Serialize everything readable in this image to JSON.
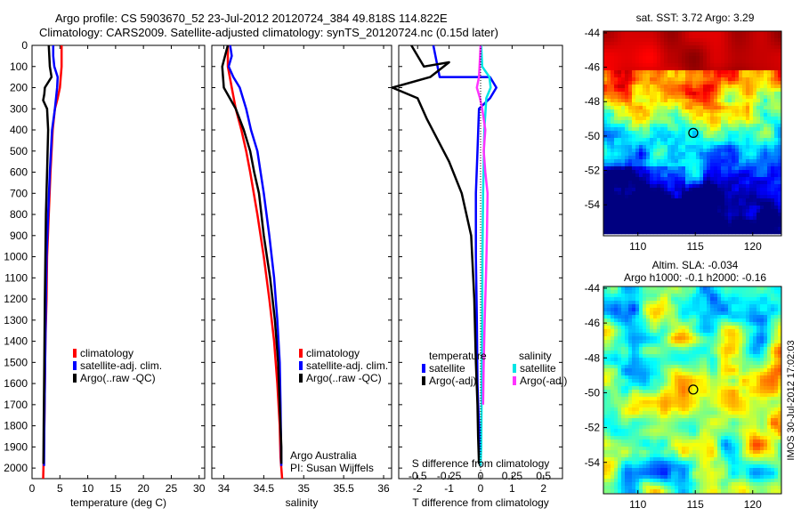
{
  "header": {
    "line1": "Argo profile: CS 5903670_52 23-Jul-2012 20120724_384 49.818S 114.822E",
    "line2": "Climatology: CARS2009. Satellite-adjusted climatology: synTS_20120724.nc (0.15d later)"
  },
  "colors": {
    "climatology": "#ff0000",
    "satellite": "#0000ff",
    "argo": "#000000",
    "sal_satellite": "#00e5e5",
    "sal_argo": "#ff33ff"
  },
  "chart_data": [
    {
      "id": "temperature",
      "type": "line",
      "xlabel": "temperature (deg C)",
      "ylabel": "",
      "xlim": [
        0,
        31
      ],
      "ylim": [
        2050,
        0
      ],
      "x_ticks": [
        0,
        5,
        10,
        15,
        20,
        25,
        30
      ],
      "y_ticks": [
        0,
        100,
        200,
        300,
        400,
        500,
        600,
        700,
        800,
        900,
        1000,
        1100,
        1200,
        1300,
        1400,
        1500,
        1600,
        1700,
        1800,
        1900,
        2000
      ],
      "legend": {
        "placement": "lower-middle",
        "entries": [
          "climatology",
          "satellite-adj. clim.",
          "Argo(..raw -QC)"
        ]
      },
      "series": [
        {
          "name": "climatology",
          "color": "#ff0000",
          "x": [
            5.3,
            5.3,
            5.0,
            4.6,
            4.1,
            3.7,
            3.3,
            3.0,
            2.7,
            2.6,
            2.4,
            2.3,
            2.2,
            2.1,
            2.0
          ],
          "y": [
            0,
            100,
            200,
            250,
            300,
            400,
            600,
            800,
            1000,
            1200,
            1400,
            1600,
            1800,
            1950,
            2050
          ]
        },
        {
          "name": "satellite-adj. clim.",
          "color": "#0000ff",
          "x": [
            3.8,
            3.8,
            4.0,
            4.6,
            4.5,
            4.1,
            3.6,
            3.2,
            2.9,
            2.6,
            2.5,
            2.4,
            2.3,
            2.2,
            2.15
          ],
          "y": [
            0,
            50,
            100,
            150,
            200,
            300,
            400,
            600,
            800,
            1000,
            1200,
            1400,
            1600,
            1800,
            1990
          ]
        },
        {
          "name": "Argo(..raw -QC)",
          "color": "#000000",
          "x": [
            3.0,
            3.2,
            3.5,
            2.3,
            2.2,
            2.0,
            2.7,
            2.9,
            2.7,
            2.5,
            2.4,
            2.3,
            2.2,
            2.1,
            2.05
          ],
          "y": [
            0,
            100,
            150,
            200,
            230,
            260,
            300,
            400,
            600,
            800,
            1000,
            1200,
            1500,
            1800,
            1980
          ]
        }
      ]
    },
    {
      "id": "salinity",
      "type": "line",
      "xlabel": "salinity",
      "ylabel": "",
      "xlim": [
        33.85,
        36.1
      ],
      "ylim": [
        2050,
        0
      ],
      "x_ticks": [
        34,
        34.5,
        35,
        35.5,
        36
      ],
      "legend": {
        "placement": "lower-right",
        "entries": [
          "climatology",
          "satellite-adj. clim.",
          "Argo(..raw -QC)"
        ]
      },
      "annotation": [
        "Argo Australia",
        "PI: Susan Wijffels"
      ],
      "series": [
        {
          "name": "climatology",
          "color": "#ff0000",
          "x": [
            34.05,
            34.05,
            34.1,
            34.15,
            34.22,
            34.28,
            34.33,
            34.42,
            34.5,
            34.57,
            34.63,
            34.67,
            34.7,
            34.71,
            34.72,
            34.73
          ],
          "y": [
            0,
            100,
            200,
            300,
            400,
            500,
            600,
            800,
            1000,
            1200,
            1400,
            1600,
            1800,
            1950,
            2000,
            2050
          ]
        },
        {
          "name": "satellite-adj. clim.",
          "color": "#0000ff",
          "x": [
            34.08,
            34.1,
            34.06,
            34.12,
            34.2,
            34.28,
            34.34,
            34.42,
            34.5,
            34.57,
            34.63,
            34.67,
            34.7,
            34.71,
            34.72
          ],
          "y": [
            0,
            50,
            100,
            150,
            200,
            300,
            400,
            500,
            700,
            900,
            1100,
            1300,
            1500,
            1700,
            1990
          ]
        },
        {
          "name": "Argo(..raw -QC)",
          "color": "#000000",
          "x": [
            34.05,
            33.98,
            34.0,
            34.15,
            34.25,
            34.33,
            34.38,
            34.44,
            34.5,
            34.58,
            34.64,
            34.68,
            34.7,
            34.72,
            34.72
          ],
          "y": [
            0,
            100,
            200,
            300,
            400,
            500,
            600,
            700,
            900,
            1100,
            1300,
            1500,
            1700,
            1900,
            1980
          ]
        }
      ]
    },
    {
      "id": "difference",
      "type": "line",
      "xlabel": "T difference from climatology",
      "ylabel": "",
      "xlim": [
        -2.6,
        2.6
      ],
      "ylim": [
        2050,
        0
      ],
      "x_ticks": [
        -2,
        -1,
        0,
        1,
        2
      ],
      "top_axis_label": "S difference from climatology",
      "top_ticks": [
        "-0.5",
        "-0.25",
        "0",
        "0.25",
        "0.5"
      ],
      "top_tick_values": [
        -0.5,
        -0.25,
        0,
        0.25,
        0.5
      ],
      "legend": {
        "placement": "lower-middle",
        "temperature_title": "temperature",
        "salinity_title": "salinity",
        "temperature_entries": [
          "satellite",
          "Argo(-adj)"
        ],
        "salinity_entries": [
          "satellite",
          "Argo(-adj)"
        ]
      },
      "series": [
        {
          "name": "temperature satellite",
          "color": "#0000ff",
          "x": [
            -1.5,
            -1.3,
            0.3,
            0.5,
            0.3,
            -0.05,
            -0.1,
            -0.15,
            -0.15,
            -0.12,
            -0.1,
            -0.05,
            0.0
          ],
          "y": [
            0,
            150,
            150,
            200,
            250,
            300,
            500,
            700,
            1000,
            1300,
            1600,
            1800,
            1990
          ]
        },
        {
          "name": "temperature Argo(-adj)",
          "color": "#000000",
          "x": [
            -2.2,
            -1.8,
            -1.0,
            -1.6,
            -2.8,
            -2.0,
            -1.7,
            -1.0,
            -0.6,
            -0.3,
            -0.2,
            -0.15,
            -0.1,
            -0.08,
            -0.05
          ],
          "y": [
            0,
            100,
            80,
            150,
            200,
            250,
            350,
            550,
            700,
            900,
            1200,
            1500,
            1700,
            1850,
            1980
          ]
        },
        {
          "name": "salinity satellite",
          "color": "#00e5e5",
          "x": [
            0.02,
            0.05,
            0.28,
            0.32,
            0.18,
            0.12,
            0.08,
            0.06,
            0.05,
            0.04,
            0.03,
            0.02,
            0.0
          ],
          "y": [
            0,
            100,
            150,
            200,
            250,
            400,
            700,
            1000,
            1300,
            1500,
            1700,
            1900,
            1990
          ]
        },
        {
          "name": "salinity Argo(-adj)",
          "color": "#ff33ff",
          "x": [
            0.0,
            -0.05,
            -0.12,
            -0.02,
            0.05,
            0.15,
            0.1,
            0.15,
            0.22,
            0.2,
            0.17,
            0.13,
            0.1,
            0.08
          ],
          "y": [
            0,
            150,
            200,
            250,
            300,
            400,
            500,
            600,
            700,
            900,
            1100,
            1300,
            1500,
            1700
          ]
        }
      ]
    },
    {
      "id": "sst_map",
      "type": "heatmap",
      "title": "sat. SST: 3.72 Argo: 3.29",
      "xlim": [
        107,
        122.5
      ],
      "ylim": [
        -55.8,
        -43.9
      ],
      "x_ticks": [
        110,
        115,
        120
      ],
      "y_ticks": [
        -44,
        -46,
        -48,
        -50,
        -52,
        -54
      ],
      "argo_position": {
        "lon": 114.822,
        "lat": -49.818
      }
    },
    {
      "id": "sla_map",
      "type": "heatmap",
      "title_line1": "Altim. SLA: -0.034",
      "title_line2": "Argo h1000: -0.1 h2000: -0.16",
      "xlim": [
        107,
        122.5
      ],
      "ylim": [
        -55.8,
        -43.9
      ],
      "x_ticks": [
        110,
        115,
        120
      ],
      "y_ticks": [
        -44,
        -46,
        -48,
        -50,
        -52,
        -54
      ],
      "argo_position": {
        "lon": 114.822,
        "lat": -49.818
      }
    }
  ],
  "footer": {
    "stamp": "IMOS 30-Jul-2012 17:02:03"
  }
}
